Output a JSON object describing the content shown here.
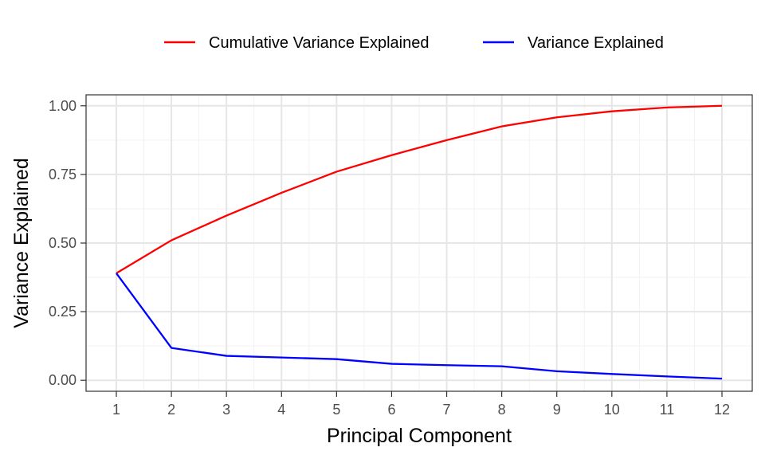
{
  "chart_data": {
    "type": "line",
    "xlabel": "Principal Component",
    "ylabel": "Variance Explained",
    "x": [
      1,
      2,
      3,
      4,
      5,
      6,
      7,
      8,
      9,
      10,
      11,
      12
    ],
    "xlim": [
      0.45,
      12.55
    ],
    "ylim": [
      -0.04,
      1.04
    ],
    "xticks": [
      "1",
      "2",
      "3",
      "4",
      "5",
      "6",
      "7",
      "8",
      "9",
      "10",
      "11",
      "12"
    ],
    "yticks": [
      0,
      0.25,
      0.5,
      0.75,
      1.0
    ],
    "ytick_labels": [
      "0.00",
      "0.25",
      "0.50",
      "0.75",
      "1.00"
    ],
    "grid": true,
    "legend_position": "top",
    "series": [
      {
        "name": "Cumulative Variance Explained",
        "color": "#ff0000",
        "values": [
          0.39,
          0.51,
          0.6,
          0.683,
          0.76,
          0.82,
          0.875,
          0.925,
          0.958,
          0.98,
          0.994,
          1.0
        ]
      },
      {
        "name": "Variance Explained",
        "color": "#0000ff",
        "values": [
          0.39,
          0.118,
          0.089,
          0.083,
          0.077,
          0.06,
          0.055,
          0.051,
          0.033,
          0.023,
          0.014,
          0.006
        ]
      }
    ]
  }
}
